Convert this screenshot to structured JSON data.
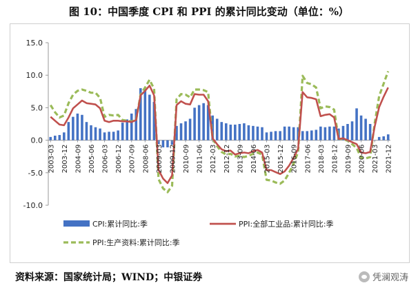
{
  "title": "图 10：中国季度 CPI 和 PPI 的累计同比变动（单位：%）",
  "source_note": "资料来源：国家统计局；WIND；中银证券",
  "watermark": "凭澜观涛",
  "colors": {
    "cpi": "#4472C4",
    "ppi": "#C0504D",
    "ppi_prod": "#9BBB59",
    "grid": "#d9d9d9",
    "axis": "#999999"
  },
  "chart_data": {
    "type": "bar",
    "title": "图 10：中国季度 CPI 和 PPI 的累计同比变动（单位：%）",
    "xlabel": "",
    "ylabel": "",
    "ylim": [
      -10,
      15
    ],
    "yticks": [
      "15.0",
      "10.0",
      "5.0",
      "0.0",
      "-5.0",
      "-10.0"
    ],
    "x_tick_labels": [
      "2003-03",
      "2003-12",
      "2004-09",
      "2005-06",
      "2006-03",
      "2006-12",
      "2007-09",
      "2008-06",
      "2009-03",
      "2009-12",
      "2010-09",
      "2011-06",
      "2012-03",
      "2012-12",
      "2013-09",
      "2014-06",
      "2015-03",
      "2015-12",
      "2016-09",
      "2017-06",
      "2018-03",
      "2018-12",
      "2019-09",
      "2020-06",
      "2021-03",
      "2021-12"
    ],
    "categories": [
      "2003-03",
      "2003-06",
      "2003-09",
      "2003-12",
      "2004-03",
      "2004-06",
      "2004-09",
      "2004-12",
      "2005-03",
      "2005-06",
      "2005-09",
      "2005-12",
      "2006-03",
      "2006-06",
      "2006-09",
      "2006-12",
      "2007-03",
      "2007-06",
      "2007-09",
      "2007-12",
      "2008-03",
      "2008-06",
      "2008-09",
      "2008-12",
      "2009-03",
      "2009-06",
      "2009-09",
      "2009-12",
      "2010-03",
      "2010-06",
      "2010-09",
      "2010-12",
      "2011-03",
      "2011-06",
      "2011-09",
      "2011-12",
      "2012-03",
      "2012-06",
      "2012-09",
      "2012-12",
      "2013-03",
      "2013-06",
      "2013-09",
      "2013-12",
      "2014-03",
      "2014-06",
      "2014-09",
      "2014-12",
      "2015-03",
      "2015-06",
      "2015-09",
      "2015-12",
      "2016-03",
      "2016-06",
      "2016-09",
      "2016-12",
      "2017-03",
      "2017-06",
      "2017-09",
      "2017-12",
      "2018-03",
      "2018-06",
      "2018-09",
      "2018-12",
      "2019-03",
      "2019-06",
      "2019-09",
      "2019-12",
      "2020-03",
      "2020-06",
      "2020-09",
      "2020-12",
      "2021-03",
      "2021-06",
      "2021-09",
      "2021-12"
    ],
    "series": [
      {
        "name": "CPI:累计同比:季",
        "type": "bar",
        "values": [
          0.5,
          0.7,
          0.8,
          1.2,
          2.8,
          3.6,
          4.1,
          3.9,
          2.8,
          2.3,
          2.0,
          1.8,
          1.2,
          1.3,
          1.3,
          1.5,
          2.7,
          3.2,
          4.1,
          4.8,
          8.0,
          7.9,
          7.0,
          5.9,
          -0.6,
          -1.1,
          -1.1,
          -0.7,
          2.2,
          2.6,
          2.9,
          3.3,
          5.0,
          5.4,
          5.7,
          5.4,
          3.8,
          3.3,
          2.8,
          2.6,
          2.4,
          2.4,
          2.5,
          2.6,
          2.3,
          2.2,
          2.1,
          2.0,
          1.2,
          1.3,
          1.4,
          1.4,
          2.1,
          2.1,
          2.0,
          2.0,
          1.4,
          1.4,
          1.5,
          1.6,
          2.1,
          2.0,
          2.1,
          2.1,
          1.8,
          2.2,
          2.5,
          2.9,
          4.9,
          3.8,
          3.3,
          2.5,
          0.0,
          0.5,
          0.6,
          0.9
        ]
      },
      {
        "name": "PPI:全部工业品:累计同比:季",
        "type": "line",
        "values": [
          3.6,
          3.0,
          2.4,
          2.3,
          3.5,
          4.9,
          5.5,
          6.1,
          5.7,
          5.6,
          5.5,
          4.9,
          3.0,
          2.8,
          3.0,
          3.0,
          2.9,
          2.9,
          2.8,
          3.1,
          6.9,
          7.6,
          8.4,
          6.9,
          -4.6,
          -5.9,
          -6.6,
          -5.4,
          5.4,
          6.0,
          5.6,
          5.5,
          7.1,
          7.0,
          7.0,
          6.0,
          0.3,
          -0.6,
          -1.4,
          -1.7,
          -1.6,
          -2.2,
          -2.0,
          -1.9,
          -2.0,
          -1.7,
          -1.5,
          -1.9,
          -4.6,
          -4.6,
          -4.9,
          -5.2,
          -4.8,
          -3.9,
          -2.7,
          -1.3,
          7.4,
          6.6,
          6.5,
          6.3,
          3.7,
          3.9,
          4.0,
          3.5,
          0.2,
          0.3,
          0.0,
          -0.3,
          -0.6,
          -1.9,
          -2.0,
          -1.8,
          2.1,
          5.1,
          6.7,
          8.1
        ]
      },
      {
        "name": "PPI:生产资料:累计同比:季",
        "type": "line",
        "values": [
          5.4,
          4.3,
          3.5,
          3.8,
          5.7,
          7.0,
          7.6,
          7.8,
          7.6,
          7.3,
          7.3,
          6.5,
          3.6,
          3.9,
          3.8,
          3.9,
          3.1,
          3.0,
          2.9,
          3.1,
          7.0,
          8.1,
          9.3,
          7.9,
          -6.0,
          -7.4,
          -8.0,
          -7.0,
          6.3,
          7.1,
          7.0,
          6.6,
          7.8,
          7.8,
          7.7,
          7.4,
          0.2,
          -0.9,
          -1.8,
          -2.2,
          -2.1,
          -2.5,
          -2.4,
          -2.6,
          -2.4,
          -2.1,
          -1.9,
          -2.2,
          -6.1,
          -6.2,
          -6.5,
          -6.7,
          -6.2,
          -5.0,
          -3.6,
          -1.8,
          9.9,
          8.8,
          8.6,
          8.1,
          4.9,
          5.2,
          5.1,
          4.7,
          0.2,
          0.2,
          -0.1,
          -0.6,
          -1.2,
          -2.7,
          -2.8,
          -2.6,
          2.6,
          6.8,
          8.7,
          10.6
        ]
      }
    ],
    "legend": {
      "position": "bottom",
      "items": [
        "CPI:累计同比:季",
        "PPI:全部工业品:累计同比:季",
        "PPI:生产资料:累计同比:季"
      ]
    },
    "grid": false
  }
}
